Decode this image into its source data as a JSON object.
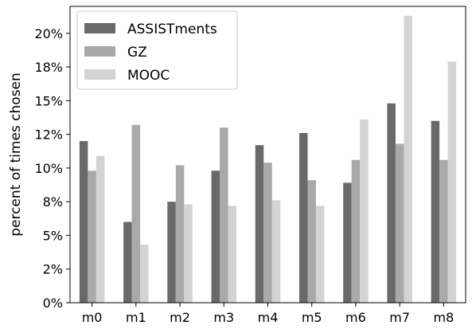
{
  "chart_data": {
    "type": "bar",
    "categories": [
      "m0",
      "m1",
      "m2",
      "m3",
      "m4",
      "m5",
      "m6",
      "m7",
      "m8"
    ],
    "series": [
      {
        "name": "ASSISTments",
        "color": "#696969",
        "values": [
          12.0,
          6.0,
          7.5,
          9.8,
          11.7,
          12.6,
          8.9,
          14.8,
          13.5
        ]
      },
      {
        "name": "GZ",
        "color": "#a9a9a9",
        "values": [
          9.8,
          13.2,
          10.2,
          13.0,
          10.4,
          9.1,
          10.6,
          11.8,
          10.6
        ]
      },
      {
        "name": "MOOC",
        "color": "#d3d3d3",
        "values": [
          10.9,
          4.3,
          7.3,
          7.2,
          7.6,
          7.2,
          13.6,
          21.3,
          17.9
        ]
      }
    ],
    "ylabel": "percent of times chosen",
    "xlabel": "",
    "ylim": [
      0,
      22.0
    ],
    "yticks": [
      0,
      2.5,
      5,
      7.5,
      10,
      12.5,
      15,
      17.5,
      20
    ],
    "ytick_labels": [
      "0%",
      "2%",
      "5%",
      "8%",
      "10%",
      "12%",
      "15%",
      "18%",
      "20%"
    ],
    "legend_position": "top-left",
    "grid": false
  }
}
